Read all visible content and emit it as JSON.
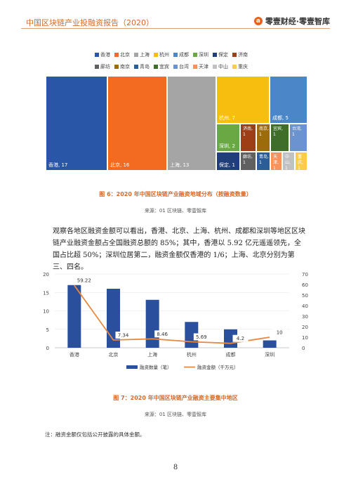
{
  "header": {
    "title": "中国区块链产业投融资报告（2020）",
    "brand": "零壹财经·零壹智库",
    "brand_logo": "a"
  },
  "treemap": {
    "legend": [
      {
        "label": "香港",
        "color": "#2a56a8"
      },
      {
        "label": "北京",
        "color": "#f26b21"
      },
      {
        "label": "上海",
        "color": "#a5a5a5"
      },
      {
        "label": "杭州",
        "color": "#f7be10"
      },
      {
        "label": "成都",
        "color": "#4a86c8"
      },
      {
        "label": "深圳",
        "color": "#6aa843"
      },
      {
        "label": "保定",
        "color": "#203e7a"
      },
      {
        "label": "济南",
        "color": "#9d3e17"
      },
      {
        "label": "廊坊",
        "color": "#606060"
      },
      {
        "label": "南京",
        "color": "#9c6b0a"
      },
      {
        "label": "青岛",
        "color": "#2b5e96"
      },
      {
        "label": "宜宾",
        "color": "#3e6e2a"
      },
      {
        "label": "台湾",
        "color": "#6a93cf"
      },
      {
        "label": "天津",
        "color": "#f6925a"
      },
      {
        "label": "中山",
        "color": "#c1c1c1"
      },
      {
        "label": "重庆",
        "color": "#f9cd4a"
      }
    ],
    "cells": [
      {
        "label": "香港, 17",
        "color": "#2a56a8"
      },
      {
        "label": "北京, 16",
        "color": "#f26b21"
      },
      {
        "label": "上海, 13",
        "color": "#a5a5a5"
      },
      {
        "label": "杭州, 7",
        "color": "#f7be10"
      },
      {
        "label": "成都, 5",
        "color": "#4a86c8"
      },
      {
        "label": "深圳, 2",
        "color": "#6aa843"
      },
      {
        "label": "保定, 1",
        "color": "#203e7a"
      },
      {
        "label": "济南, 1",
        "color": "#9d3e17"
      },
      {
        "label": "南京, 1",
        "color": "#9c6b0a"
      },
      {
        "label": "宜宾, 1",
        "color": "#3e6e2a"
      },
      {
        "label": "台湾, 1",
        "color": "#6a93cf"
      },
      {
        "label": "廊坊, 1",
        "color": "#606060"
      },
      {
        "label": "青岛, 1",
        "color": "#2b5e96"
      },
      {
        "label": "天津, 1",
        "color": "#f6925a"
      },
      {
        "label": "中山, 1",
        "color": "#c1c1c1"
      },
      {
        "label": "重庆, 1",
        "color": "#f9cd4a"
      }
    ]
  },
  "fig6": {
    "caption": "图 6：2020 年中国区块链产业融资地域分布（按融资数量）",
    "source": "来源：01 区块链、零壹智库"
  },
  "paragraph": "观察各地区融资金额可以看出，香港、北京、上海、杭州、成都和深圳等地区区块链产业融资金额占全国融资总额的 85%；其中，香港以 5.92 亿元遥遥领先，全国占比超 50%；深圳位居第二，融资金额仅香港的 1/6；上海、北京分别为第三、四名。",
  "chart_data": {
    "type": "bar",
    "categories": [
      "香港",
      "北京",
      "上海",
      "杭州",
      "成都",
      "深圳"
    ],
    "series": [
      {
        "name": "融资数量（笔）",
        "type": "bar",
        "axis": "left",
        "values": [
          17,
          16,
          13,
          7,
          5,
          2
        ],
        "color": "#2a4f9c"
      },
      {
        "name": "融资金额（千万元）",
        "type": "line",
        "axis": "right",
        "values": [
          59.22,
          7.34,
          8.46,
          5.69,
          4.2,
          10
        ],
        "labels": [
          "59.22",
          "7.34",
          "8.46",
          "5.69",
          "4.2",
          "10"
        ],
        "color": "#e8893f"
      }
    ],
    "ylim_left": [
      0,
      20
    ],
    "yticks_left": [
      "0",
      "5",
      "10",
      "15",
      "20"
    ],
    "ylim_right": [
      0,
      70
    ],
    "yticks_right": [
      "0",
      "10",
      "20",
      "30",
      "40",
      "50",
      "60",
      "70"
    ],
    "legend": [
      "融资数量（笔）",
      "融资金额（千万元）"
    ]
  },
  "fig7": {
    "caption": "图 7：2020 年中国区块链产业融资主要集中地区",
    "source": "来源：01 区块链、零壹智库"
  },
  "note": "注：融资金额仅包括公开披露的具体金额。",
  "page_number": "8"
}
